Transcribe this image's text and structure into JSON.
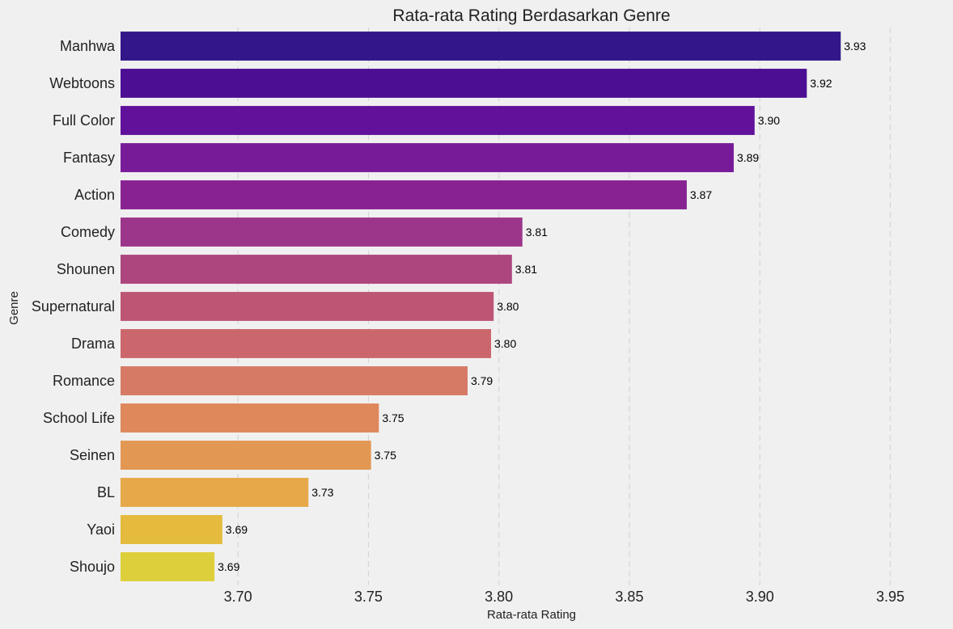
{
  "chart_data": {
    "type": "bar",
    "orientation": "horizontal",
    "title": "Rata-rata Rating Berdasarkan Genre",
    "xlabel": "Rata-rata Rating",
    "ylabel": "Genre",
    "categories": [
      "Manhwa",
      "Webtoons",
      "Full Color",
      "Fantasy",
      "Action",
      "Comedy",
      "Shounen",
      "Supernatural",
      "Drama",
      "Romance",
      "School Life",
      "Seinen",
      "BL",
      "Yaoi",
      "Shoujo"
    ],
    "values": [
      3.931,
      3.918,
      3.898,
      3.89,
      3.872,
      3.809,
      3.805,
      3.798,
      3.797,
      3.788,
      3.754,
      3.751,
      3.727,
      3.694,
      3.691
    ],
    "data_labels": [
      "3.93",
      "3.92",
      "3.90",
      "3.89",
      "3.87",
      "3.81",
      "3.81",
      "3.80",
      "3.80",
      "3.79",
      "3.75",
      "3.75",
      "3.73",
      "3.69",
      "3.69"
    ],
    "xlim": [
      3.655,
      3.97
    ],
    "xticks": [
      3.7,
      3.75,
      3.8,
      3.85,
      3.9,
      3.95
    ],
    "xtick_labels": [
      "3.70",
      "3.75",
      "3.80",
      "3.85",
      "3.90",
      "3.95"
    ],
    "colors": [
      "#33168a",
      "#4c0f93",
      "#62129a",
      "#781b99",
      "#882292",
      "#9c368a",
      "#ad467f",
      "#bd5675",
      "#cb676c",
      "#d67a66",
      "#df885c",
      "#e29753",
      "#e6a848",
      "#e4bb3d",
      "#ddcf3c"
    ],
    "grid": "vertical dashed",
    "legend": "none"
  }
}
